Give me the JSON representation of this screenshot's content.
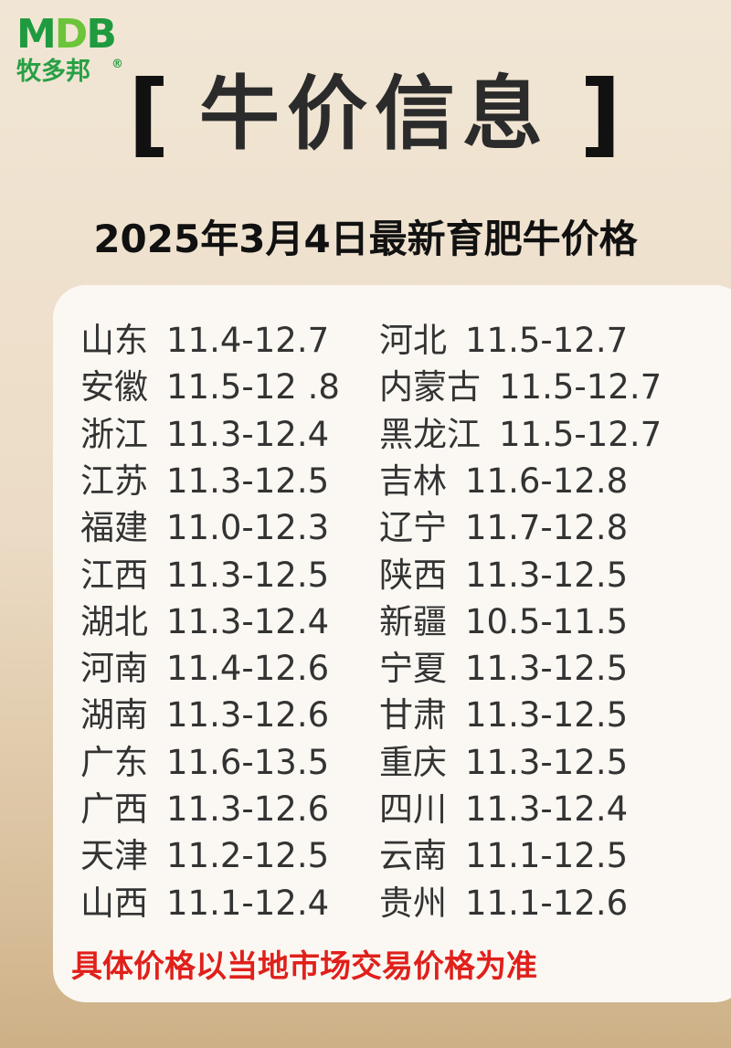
{
  "logo": {
    "mark": "MDB",
    "text": "牧多邦",
    "registered": "®"
  },
  "title": {
    "open": "[",
    "text": "牛价信息",
    "close": "]"
  },
  "subtitle": "2025年3月4日最新育肥牛价格",
  "left": [
    {
      "province": "山东",
      "price": "11.4-12.7"
    },
    {
      "province": "安徽",
      "price": "11.5-12 .8"
    },
    {
      "province": "浙江",
      "price": "11.3-12.4"
    },
    {
      "province": "江苏",
      "price": "11.3-12.5"
    },
    {
      "province": "福建",
      "price": "11.0-12.3"
    },
    {
      "province": "江西",
      "price": "11.3-12.5"
    },
    {
      "province": "湖北",
      "price": "11.3-12.4"
    },
    {
      "province": "河南",
      "price": "11.4-12.6"
    },
    {
      "province": "湖南",
      "price": "11.3-12.6"
    },
    {
      "province": "广东",
      "price": "11.6-13.5"
    },
    {
      "province": "广西",
      "price": "11.3-12.6"
    },
    {
      "province": "天津",
      "price": "11.2-12.5"
    },
    {
      "province": "山西",
      "price": "11.1-12.4"
    }
  ],
  "right": [
    {
      "province": "河北",
      "price": "11.5-12.7"
    },
    {
      "province": "内蒙古",
      "price": "11.5-12.7"
    },
    {
      "province": "黑龙江",
      "price": "11.5-12.7"
    },
    {
      "province": "吉林",
      "price": "11.6-12.8"
    },
    {
      "province": "辽宁",
      "price": "11.7-12.8"
    },
    {
      "province": "陕西",
      "price": "11.3-12.5"
    },
    {
      "province": "新疆",
      "price": "10.5-11.5"
    },
    {
      "province": "宁夏",
      "price": "11.3-12.5"
    },
    {
      "province": "甘肃",
      "price": "11.3-12.5"
    },
    {
      "province": "重庆",
      "price": "11.3-12.5"
    },
    {
      "province": "四川",
      "price": "11.3-12.4"
    },
    {
      "province": "云南",
      "price": "11.1-12.5"
    },
    {
      "province": "贵州",
      "price": "11.1-12.6"
    }
  ],
  "footer": "具体价格以当地市场交易价格为准",
  "colors": {
    "brand_green": "#1f9a3f",
    "footer_red": "#e0201b"
  }
}
